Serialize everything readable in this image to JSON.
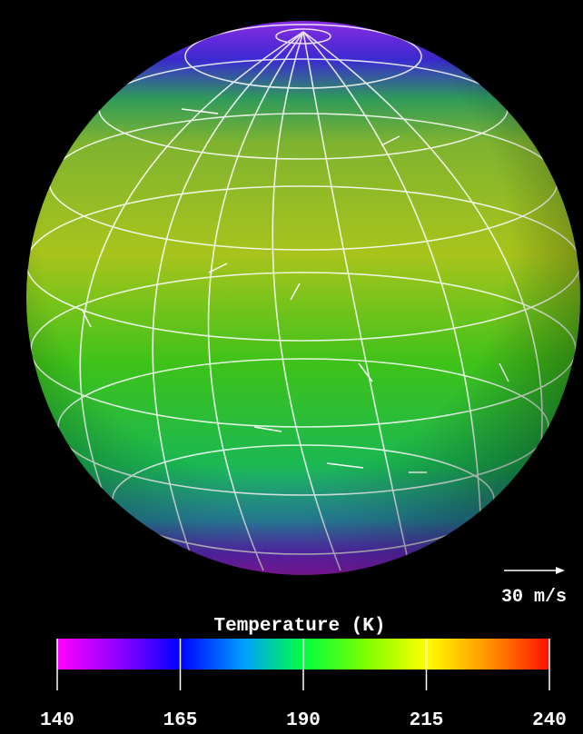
{
  "scale_arrow": {
    "label": "30 m/s"
  },
  "colorbar": {
    "title": "Temperature (K)",
    "lim": [
      140,
      240
    ],
    "ticks": [
      140,
      165,
      190,
      215,
      240
    ]
  }
}
